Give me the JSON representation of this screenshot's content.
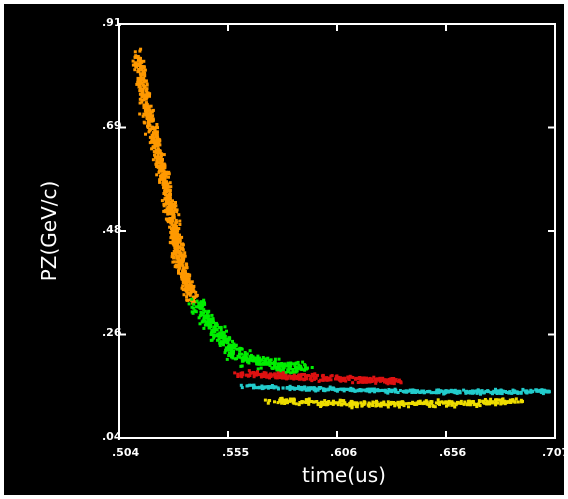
{
  "chart_data": {
    "type": "scatter",
    "title": "",
    "xlabel": "time(us)",
    "ylabel": "PZ(GeV/c)",
    "xlim": [
      0.504,
      0.707
    ],
    "ylim": [
      0.04,
      0.91
    ],
    "x_ticks": [
      ".504",
      ".555",
      ".606",
      ".656",
      ".707"
    ],
    "y_ticks": [
      ".91",
      ".69",
      ".48",
      ".26",
      ".04"
    ],
    "grid": false,
    "legend": "none",
    "background": "#000000",
    "axis_color": "#ffffff",
    "series": [
      {
        "color": "#ff9900",
        "description_points": [
          [
            0.513,
            0.84
          ],
          [
            0.514,
            0.8
          ],
          [
            0.516,
            0.76
          ],
          [
            0.518,
            0.72
          ],
          [
            0.52,
            0.68
          ],
          [
            0.522,
            0.64
          ],
          [
            0.524,
            0.6
          ],
          [
            0.526,
            0.56
          ],
          [
            0.528,
            0.52
          ],
          [
            0.53,
            0.48
          ],
          [
            0.531,
            0.45
          ],
          [
            0.532,
            0.42
          ],
          [
            0.534,
            0.39
          ],
          [
            0.536,
            0.36
          ],
          [
            0.538,
            0.34
          ]
        ],
        "spread": [
          0.004,
          0.03
        ]
      },
      {
        "color": "#00ee00",
        "description_points": [
          [
            0.54,
            0.33
          ],
          [
            0.545,
            0.29
          ],
          [
            0.55,
            0.26
          ],
          [
            0.556,
            0.23
          ],
          [
            0.562,
            0.21
          ],
          [
            0.57,
            0.2
          ],
          [
            0.58,
            0.19
          ],
          [
            0.59,
            0.185
          ]
        ],
        "spread": [
          0.006,
          0.02
        ]
      },
      {
        "color": "#dd1111",
        "description_points": [
          [
            0.56,
            0.175
          ],
          [
            0.575,
            0.172
          ],
          [
            0.59,
            0.168
          ],
          [
            0.605,
            0.165
          ],
          [
            0.62,
            0.162
          ],
          [
            0.635,
            0.16
          ]
        ],
        "spread": [
          0.005,
          0.01
        ]
      },
      {
        "color": "#22cccc",
        "description_points": [
          [
            0.565,
            0.148
          ],
          [
            0.585,
            0.145
          ],
          [
            0.605,
            0.142
          ],
          [
            0.625,
            0.14
          ],
          [
            0.645,
            0.138
          ],
          [
            0.665,
            0.137
          ],
          [
            0.685,
            0.137
          ],
          [
            0.705,
            0.138
          ]
        ],
        "spread": [
          0.006,
          0.006
        ]
      },
      {
        "color": "#eedd00",
        "description_points": [
          [
            0.575,
            0.118
          ],
          [
            0.595,
            0.115
          ],
          [
            0.615,
            0.112
          ],
          [
            0.635,
            0.112
          ],
          [
            0.655,
            0.113
          ],
          [
            0.675,
            0.115
          ],
          [
            0.69,
            0.118
          ]
        ],
        "spread": [
          0.006,
          0.01
        ]
      }
    ]
  }
}
